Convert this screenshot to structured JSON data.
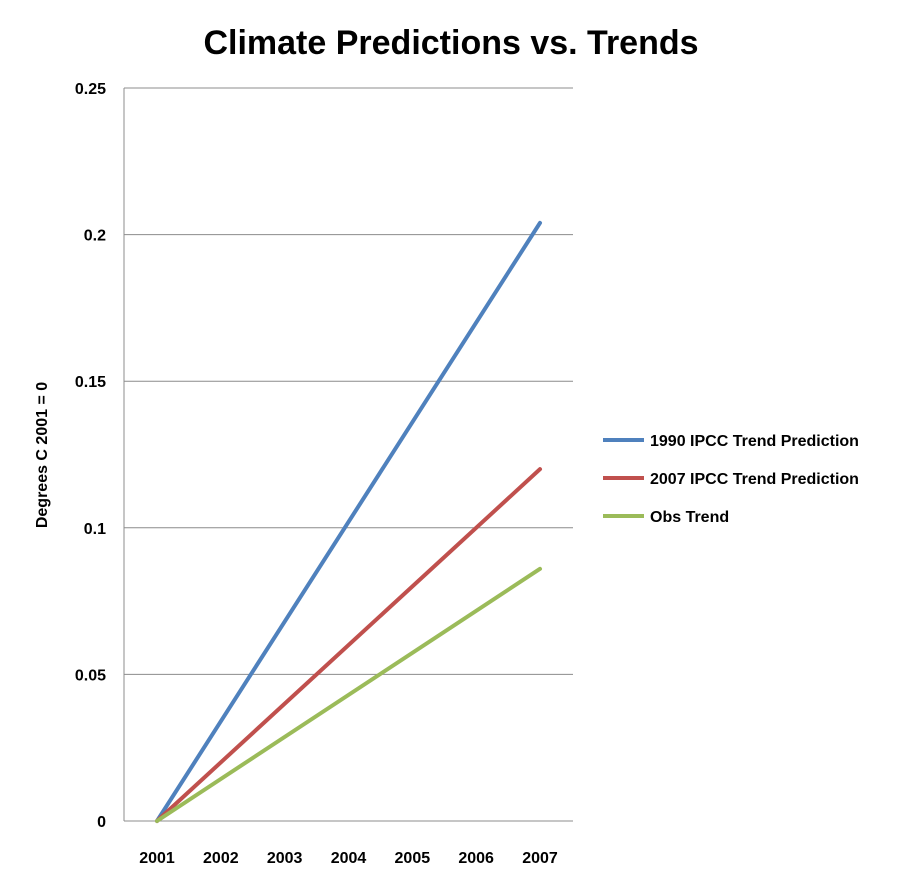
{
  "chart_data": {
    "type": "line",
    "title": "Climate Predictions vs. Trends",
    "xlabel": "",
    "ylabel": "Degrees C 2001 = 0",
    "x": [
      2001,
      2007
    ],
    "x_tick_labels": [
      "2001",
      "2002",
      "2003",
      "2004",
      "2005",
      "2006",
      "2007"
    ],
    "y_tick_labels": [
      "0",
      "0.05",
      "0.1",
      "0.15",
      "0.2",
      "0.25"
    ],
    "ylim": [
      0,
      0.25
    ],
    "grid": true,
    "legend_position": "right",
    "series": [
      {
        "name": "1990 IPCC Trend Prediction",
        "color": "#4F81BD",
        "values": [
          0,
          0.204
        ]
      },
      {
        "name": "2007 IPCC Trend Prediction",
        "color": "#C0504D",
        "values": [
          0,
          0.12
        ]
      },
      {
        "name": "Obs Trend",
        "color": "#9BBB59",
        "values": [
          0,
          0.086
        ]
      }
    ]
  }
}
